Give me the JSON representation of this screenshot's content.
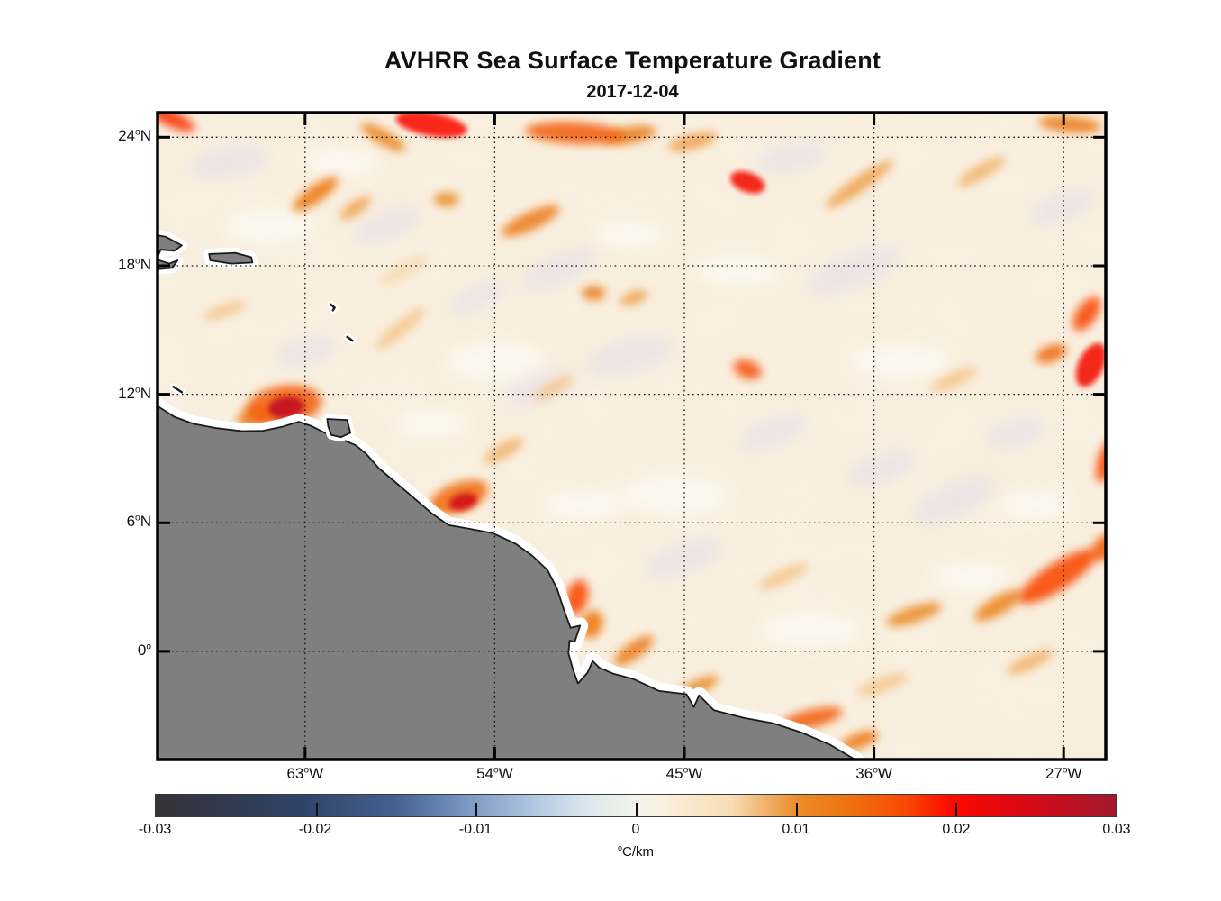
{
  "chart_data": {
    "type": "heatmap",
    "title": "AVHRR Sea Surface Temperature Gradient",
    "date": "2017-12-04",
    "grid": "dotted",
    "extent": {
      "lon_min": -70.0,
      "lon_max": -25.0,
      "lat_min": -5.05,
      "lat_max": 25.15
    },
    "x_ticks": [
      {
        "lon": -63,
        "label": "63",
        "hemi": "W"
      },
      {
        "lon": -54,
        "label": "54",
        "hemi": "W"
      },
      {
        "lon": -45,
        "label": "45",
        "hemi": "W"
      },
      {
        "lon": -36,
        "label": "36",
        "hemi": "W"
      },
      {
        "lon": -27,
        "label": "27",
        "hemi": "W"
      }
    ],
    "y_ticks": [
      {
        "lat": 24,
        "label": "24",
        "hemi": "N"
      },
      {
        "lat": 18,
        "label": "18",
        "hemi": "N"
      },
      {
        "lat": 12,
        "label": "12",
        "hemi": "N"
      },
      {
        "lat": 6,
        "label": "6",
        "hemi": "N"
      },
      {
        "lat": 0,
        "label": "0",
        "hemi": ""
      }
    ],
    "colorbar": {
      "min": -0.03,
      "max": 0.03,
      "tick_values": [
        -0.03,
        -0.02,
        -0.01,
        0,
        0.01,
        0.02,
        0.03
      ],
      "tick_labels": [
        "-0.03",
        "-0.02",
        "-0.01",
        "0",
        "0.01",
        "0.02",
        "0.03"
      ],
      "unit_sup": "o",
      "unit_text": "C/km",
      "stops": [
        [
          0.0,
          "#343338"
        ],
        [
          0.06,
          "#32384a"
        ],
        [
          0.15,
          "#2f4368"
        ],
        [
          0.25,
          "#44618f"
        ],
        [
          0.33,
          "#7e9cc6"
        ],
        [
          0.4,
          "#b7cbe2"
        ],
        [
          0.45,
          "#dde7ee"
        ],
        [
          0.48,
          "#e9efe9"
        ],
        [
          0.5,
          "#f6f3ec"
        ],
        [
          0.53,
          "#faf0dd"
        ],
        [
          0.6,
          "#f8dcb2"
        ],
        [
          0.667,
          "#ea8d2b"
        ],
        [
          0.72,
          "#ee740f"
        ],
        [
          0.78,
          "#f84a05"
        ],
        [
          0.83,
          "#fd0a00"
        ],
        [
          0.9,
          "#dc0814"
        ],
        [
          1.0,
          "#a3182e"
        ]
      ]
    },
    "colors": {
      "ocean_base": "#f9f0e1",
      "land": "#7f7f7f",
      "coast": "#1a1a1a",
      "coast_halo": "#ffffff",
      "frame": "#000000",
      "lavender_tint": "#e4dcea",
      "bright_tint": "#fdfaf4"
    },
    "land": {
      "mainland": [
        [
          -71.0,
          11.7
        ],
        [
          -70.0,
          11.45
        ],
        [
          -69.2,
          10.95
        ],
        [
          -68.3,
          10.62
        ],
        [
          -67.2,
          10.42
        ],
        [
          -66.0,
          10.28
        ],
        [
          -65.0,
          10.3
        ],
        [
          -64.1,
          10.48
        ],
        [
          -63.3,
          10.72
        ],
        [
          -62.7,
          10.52
        ],
        [
          -62.1,
          10.22
        ],
        [
          -61.3,
          9.92
        ],
        [
          -60.6,
          9.62
        ],
        [
          -60.1,
          9.22
        ],
        [
          -59.5,
          8.55
        ],
        [
          -58.9,
          8.05
        ],
        [
          -58.0,
          7.3
        ],
        [
          -57.0,
          6.45
        ],
        [
          -56.2,
          5.9
        ],
        [
          -55.2,
          5.72
        ],
        [
          -54.1,
          5.52
        ],
        [
          -53.0,
          5.02
        ],
        [
          -52.2,
          4.45
        ],
        [
          -51.5,
          3.8
        ],
        [
          -51.05,
          2.95
        ],
        [
          -50.7,
          1.9
        ],
        [
          -50.4,
          1.1
        ],
        [
          -49.95,
          1.2
        ],
        [
          -50.2,
          0.45
        ],
        [
          -50.45,
          0.5
        ],
        [
          -50.5,
          -0.1
        ],
        [
          -50.3,
          -0.8
        ],
        [
          -50.05,
          -1.5
        ],
        [
          -49.6,
          -1.0
        ],
        [
          -49.35,
          -0.45
        ],
        [
          -49.05,
          -0.75
        ],
        [
          -48.35,
          -1.05
        ],
        [
          -47.4,
          -1.3
        ],
        [
          -46.2,
          -1.85
        ],
        [
          -44.9,
          -2.0
        ],
        [
          -44.55,
          -2.6
        ],
        [
          -44.3,
          -2.05
        ],
        [
          -43.6,
          -2.75
        ],
        [
          -42.2,
          -3.1
        ],
        [
          -40.8,
          -3.35
        ],
        [
          -39.4,
          -3.8
        ],
        [
          -38.1,
          -4.35
        ],
        [
          -36.9,
          -5.05
        ],
        [
          -36.4,
          -5.7
        ],
        [
          -71.0,
          -5.7
        ]
      ],
      "hispaniola": [
        [
          -71.0,
          19.6
        ],
        [
          -69.6,
          19.35
        ],
        [
          -68.85,
          18.95
        ],
        [
          -69.2,
          18.7
        ],
        [
          -69.85,
          18.75
        ],
        [
          -70.05,
          18.3
        ],
        [
          -69.45,
          18.1
        ],
        [
          -69.05,
          18.25
        ],
        [
          -69.3,
          17.9
        ],
        [
          -71.0,
          17.75
        ]
      ],
      "puerto_rico": [
        [
          -67.55,
          18.55
        ],
        [
          -66.3,
          18.6
        ],
        [
          -65.55,
          18.4
        ],
        [
          -65.5,
          18.15
        ],
        [
          -66.5,
          18.1
        ],
        [
          -67.5,
          18.25
        ]
      ],
      "trinidad": [
        [
          -61.95,
          10.85
        ],
        [
          -61.0,
          10.8
        ],
        [
          -60.85,
          10.2
        ],
        [
          -61.3,
          10.0
        ],
        [
          -61.75,
          10.1
        ],
        [
          -61.9,
          10.5
        ]
      ],
      "island_marks": [
        [
          [
            -69.25,
            12.35
          ],
          [
            -68.85,
            12.1
          ]
        ],
        [
          [
            -61.78,
            16.2
          ],
          [
            -61.6,
            16.05
          ],
          [
            -61.68,
            15.92
          ]
        ],
        [
          [
            -61.0,
            14.68
          ],
          [
            -60.75,
            14.5
          ]
        ]
      ]
    },
    "fronts": [
      [
        -69.4,
        24.9,
        0.018,
        30,
        9,
        25
      ],
      [
        -57.0,
        24.6,
        0.02,
        40,
        13,
        10
      ],
      [
        -59.3,
        24.0,
        0.011,
        28,
        8,
        30
      ],
      [
        -50.2,
        24.2,
        0.015,
        55,
        12,
        3
      ],
      [
        -47.6,
        24.1,
        0.012,
        30,
        9,
        -10
      ],
      [
        -42.0,
        21.9,
        0.021,
        20,
        11,
        20
      ],
      [
        -44.6,
        23.8,
        0.009,
        28,
        8,
        -15
      ],
      [
        -26.7,
        24.6,
        0.012,
        35,
        9,
        5
      ],
      [
        -62.5,
        21.35,
        0.013,
        30,
        9,
        -35
      ],
      [
        -60.6,
        20.7,
        0.009,
        20,
        7,
        -35
      ],
      [
        -52.3,
        20.1,
        0.012,
        35,
        10,
        -25
      ],
      [
        -56.3,
        21.1,
        0.01,
        14,
        8,
        0
      ],
      [
        -36.7,
        21.8,
        0.009,
        45,
        8,
        -35
      ],
      [
        -30.9,
        22.4,
        0.008,
        30,
        8,
        -30
      ],
      [
        -49.3,
        16.73,
        0.012,
        13,
        8,
        0
      ],
      [
        -47.4,
        16.5,
        0.009,
        16,
        7,
        -20
      ],
      [
        -42.0,
        13.16,
        0.016,
        16,
        10,
        20
      ],
      [
        -25.9,
        15.76,
        0.017,
        22,
        11,
        -55
      ],
      [
        -25.7,
        13.37,
        0.021,
        26,
        14,
        -65
      ],
      [
        -27.6,
        13.9,
        0.014,
        18,
        9,
        -20
      ],
      [
        -25.0,
        8.87,
        0.017,
        24,
        9,
        -75
      ],
      [
        -64.0,
        11.48,
        0.015,
        42,
        22,
        -8
      ],
      [
        -63.9,
        11.39,
        0.027,
        20,
        12,
        -8
      ],
      [
        -65.4,
        10.97,
        0.012,
        20,
        10,
        -15
      ],
      [
        -58.5,
        15.05,
        0.007,
        35,
        8,
        -40
      ],
      [
        -55.7,
        7.19,
        0.014,
        34,
        16,
        -20
      ],
      [
        -55.5,
        6.98,
        0.025,
        16,
        9,
        -15
      ],
      [
        -53.6,
        9.37,
        0.008,
        25,
        8,
        -30
      ],
      [
        -50.1,
        2.52,
        0.017,
        12,
        20,
        15
      ],
      [
        -49.4,
        1.26,
        0.013,
        12,
        16,
        20
      ],
      [
        -47.4,
        0.04,
        0.012,
        26,
        9,
        -35
      ],
      [
        -44.4,
        -1.68,
        0.01,
        26,
        8,
        -25
      ],
      [
        -39.0,
        -3.15,
        0.015,
        36,
        10,
        -14
      ],
      [
        -36.7,
        -4.16,
        0.013,
        22,
        8,
        -20
      ],
      [
        -27.3,
        3.49,
        0.017,
        50,
        15,
        -33
      ],
      [
        -25.0,
        4.88,
        0.015,
        20,
        12,
        -40
      ],
      [
        -30.1,
        2.14,
        0.011,
        30,
        10,
        -30
      ],
      [
        -34.1,
        1.72,
        0.01,
        32,
        9,
        -18
      ],
      [
        -28.6,
        -0.5,
        0.008,
        28,
        8,
        -25
      ],
      [
        -51.2,
        12.3,
        0.007,
        25,
        7,
        -30
      ],
      [
        -66.8,
        15.9,
        0.007,
        25,
        7,
        -20
      ],
      [
        -58.3,
        17.8,
        0.006,
        30,
        8,
        -30
      ],
      [
        -40.3,
        3.5,
        0.007,
        30,
        8,
        -25
      ],
      [
        -35.6,
        -1.55,
        0.007,
        30,
        8,
        -20
      ],
      [
        -32.2,
        12.7,
        0.007,
        28,
        8,
        -25
      ]
    ],
    "texture": {
      "lavender": [
        [
          -66.58,
          22.83,
          45,
          16,
          -10
        ],
        [
          -59.11,
          19.88,
          40,
          14,
          -20
        ],
        [
          -51.0,
          17.78,
          45,
          15,
          -25
        ],
        [
          -47.58,
          13.79,
          50,
          18,
          -15
        ],
        [
          -36.91,
          17.78,
          55,
          18,
          -20
        ],
        [
          -39.9,
          23.04,
          40,
          14,
          -10
        ],
        [
          -32.22,
          7.06,
          50,
          18,
          -25
        ],
        [
          -51.85,
          12.32,
          40,
          14,
          -20
        ],
        [
          -45.02,
          4.33,
          45,
          16,
          -20
        ],
        [
          -29.23,
          10.21,
          35,
          14,
          -15
        ],
        [
          -35.63,
          8.53,
          40,
          15,
          -20
        ],
        [
          -62.96,
          14.0,
          35,
          13,
          -15
        ],
        [
          -54.84,
          16.52,
          35,
          12,
          -25
        ],
        [
          -40.75,
          10.21,
          40,
          14,
          -20
        ],
        [
          -27.09,
          20.72,
          40,
          14,
          -20
        ]
      ],
      "bright": [
        [
          -64.66,
          19.88,
          50,
          18,
          0
        ],
        [
          -53.99,
          13.58,
          55,
          20,
          0
        ],
        [
          -45.45,
          7.27,
          60,
          20,
          0
        ],
        [
          -34.77,
          13.58,
          55,
          18,
          0
        ],
        [
          -49.72,
          6.85,
          45,
          16,
          0
        ],
        [
          -56.97,
          10.63,
          40,
          15,
          0
        ],
        [
          -39.04,
          0.97,
          55,
          18,
          0
        ],
        [
          -28.37,
          6.85,
          40,
          15,
          0
        ],
        [
          -61.25,
          22.83,
          40,
          14,
          0
        ],
        [
          -42.46,
          17.78,
          45,
          16,
          0
        ],
        [
          -31.37,
          3.49,
          45,
          15,
          0
        ],
        [
          -53.56,
          3.49,
          45,
          16,
          0
        ],
        [
          -66.79,
          8.53,
          40,
          14,
          0
        ],
        [
          -47.58,
          19.46,
          40,
          14,
          0
        ]
      ]
    }
  }
}
